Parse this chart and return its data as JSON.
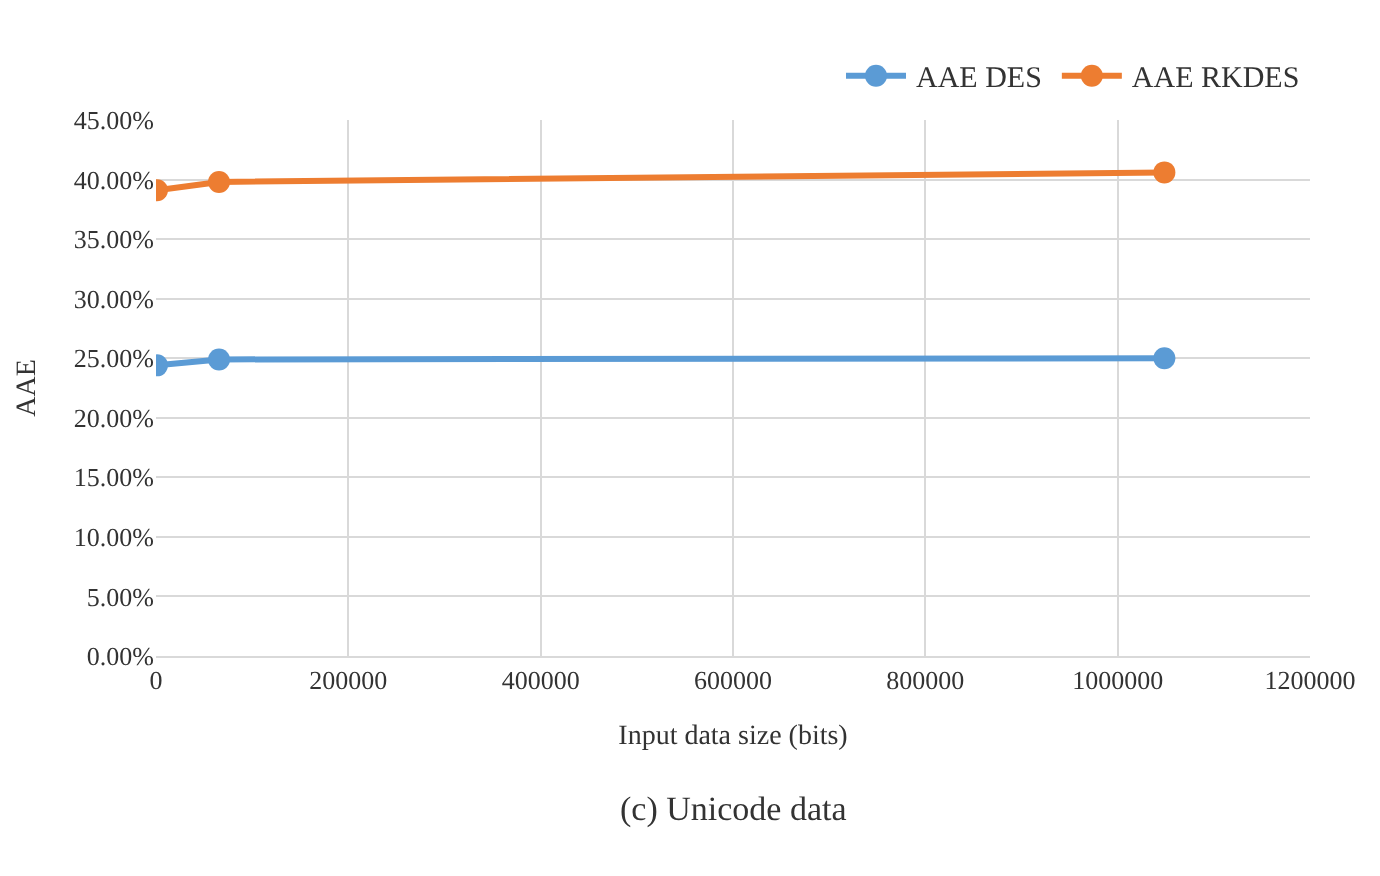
{
  "chart_data": {
    "type": "line",
    "xlabel": "Input data size (bits)",
    "ylabel": "AAE",
    "x": [
      1024,
      65536,
      1048576
    ],
    "series": [
      {
        "name": "AAE DES",
        "color": "#5b9bd5",
        "values": [
          24.4,
          24.9,
          25.0
        ]
      },
      {
        "name": "AAE RKDES",
        "color": "#ed7d31",
        "values": [
          39.1,
          39.8,
          40.6
        ]
      }
    ],
    "xlim": [
      0,
      1200000
    ],
    "xticks": [
      0,
      200000,
      400000,
      600000,
      800000,
      1000000,
      1200000
    ],
    "ylim": [
      0,
      45
    ],
    "yticks": [
      {
        "value": 0,
        "label": "0.00%"
      },
      {
        "value": 5,
        "label": "5.00%"
      },
      {
        "value": 10,
        "label": "10.00%"
      },
      {
        "value": 15,
        "label": "15.00%"
      },
      {
        "value": 20,
        "label": "20.00%"
      },
      {
        "value": 25,
        "label": "25.00%"
      },
      {
        "value": 30,
        "label": "30.00%"
      },
      {
        "value": 35,
        "label": "35.00%"
      },
      {
        "value": 40,
        "label": "40.00%"
      },
      {
        "value": 45,
        "label": "45.00%"
      }
    ],
    "grid": true,
    "legend": "top right",
    "marker": "circle",
    "line_style": "solid",
    "annotations": [
      "(c) Unicode data"
    ]
  }
}
